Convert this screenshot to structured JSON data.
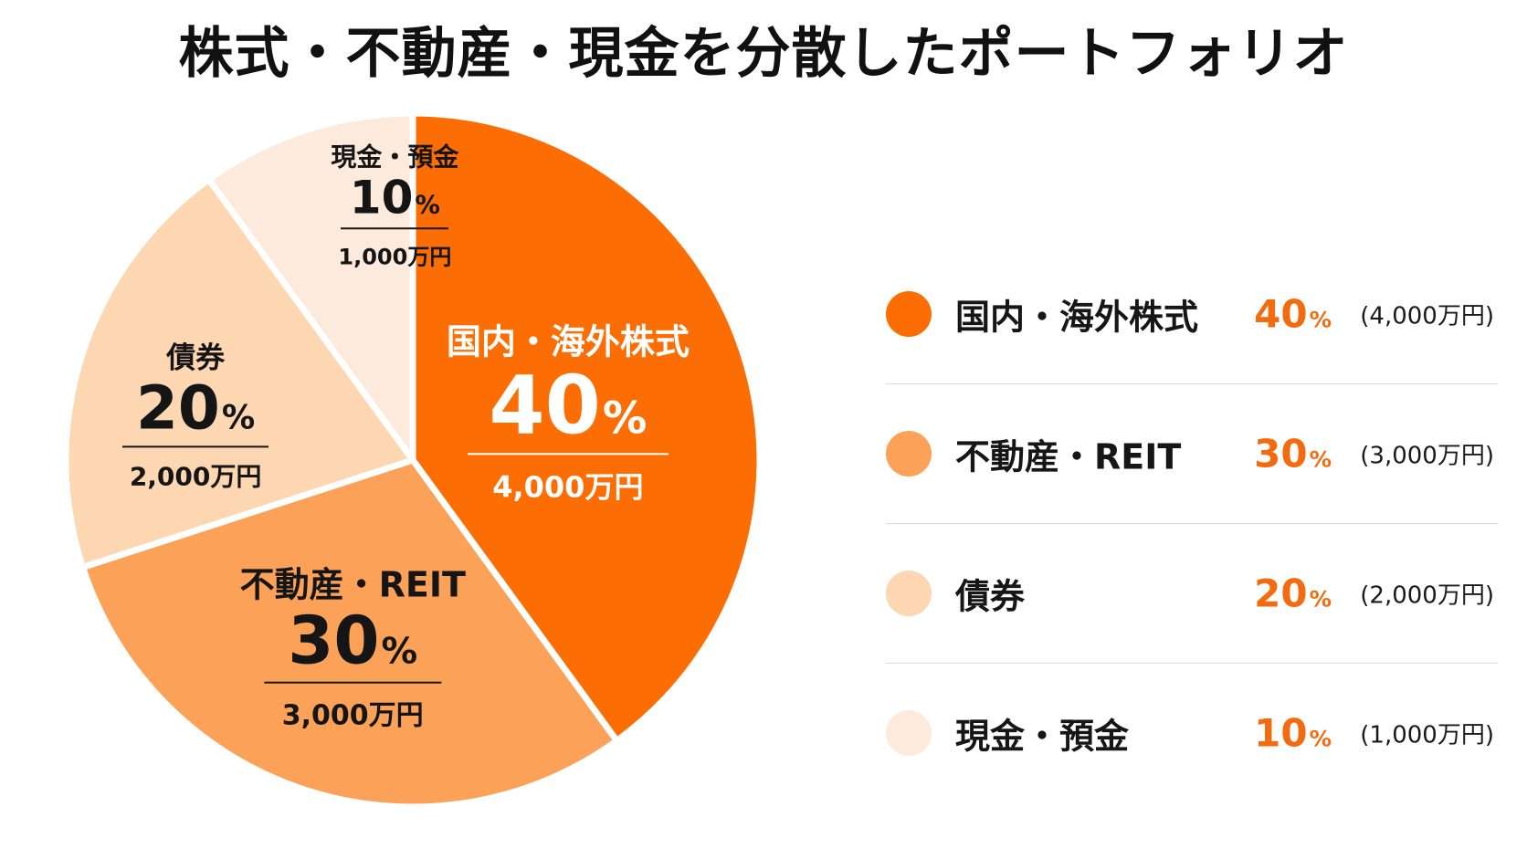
{
  "chart_data": {
    "type": "pie",
    "title": "株式・不動産・現金を分散したポートフォリオ",
    "slices": [
      {
        "label": "国内・海外株式",
        "value": 40,
        "percent_text": "40",
        "amount_text": "4,000万円",
        "legend_amount_text": "(4,000万円)",
        "color": "#fc6d03",
        "text_color": "#ffffff"
      },
      {
        "label": "不動産・REIT",
        "value": 30,
        "percent_text": "30",
        "amount_text": "3,000万円",
        "legend_amount_text": "(3,000万円)",
        "color": "#fba258",
        "text_color": "#151515"
      },
      {
        "label": "債券",
        "value": 20,
        "percent_text": "20",
        "amount_text": "2,000万円",
        "legend_amount_text": "(2,000万円)",
        "color": "#fdd6b2",
        "text_color": "#151515"
      },
      {
        "label": "現金・預金",
        "value": 10,
        "percent_text": "10",
        "amount_text": "1,000万円",
        "legend_amount_text": "(1,000万円)",
        "color": "#fcebdd",
        "text_color": "#151515"
      }
    ],
    "percent_unit": "%",
    "legend_placement": "right",
    "accent_color": "#f26b0f"
  }
}
